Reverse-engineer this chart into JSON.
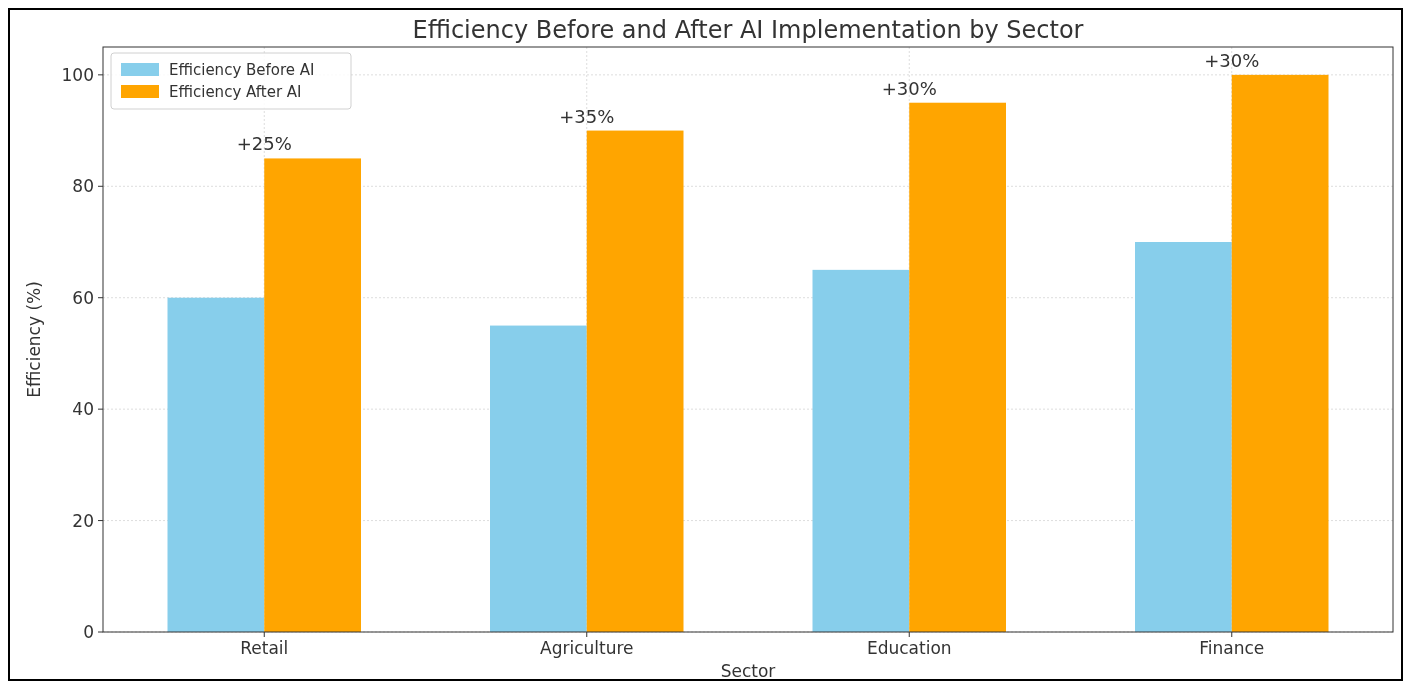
{
  "chart_data": {
    "type": "bar",
    "title": "Efficiency Before and After AI Implementation by Sector",
    "xlabel": "Sector",
    "ylabel": "Efficiency (%)",
    "categories": [
      "Retail",
      "Agriculture",
      "Education",
      "Finance"
    ],
    "series": [
      {
        "name": "Efficiency Before AI",
        "color": "#87ceeb",
        "values": [
          60,
          55,
          65,
          70
        ]
      },
      {
        "name": "Efficiency After AI",
        "color": "#ffa500",
        "values": [
          85,
          90,
          95,
          100
        ]
      }
    ],
    "ylim": [
      0,
      105
    ],
    "yticks": [
      0,
      20,
      40,
      60,
      80,
      100
    ],
    "grid": true,
    "legend": "top left",
    "annotations": [
      {
        "text": "+25%",
        "x": "Retail",
        "y": 85
      },
      {
        "text": "+35%",
        "x": "Agriculture",
        "y": 90
      },
      {
        "text": "+30%",
        "x": "Education",
        "y": 95
      },
      {
        "text": "+30%",
        "x": "Finance",
        "y": 100
      }
    ]
  }
}
